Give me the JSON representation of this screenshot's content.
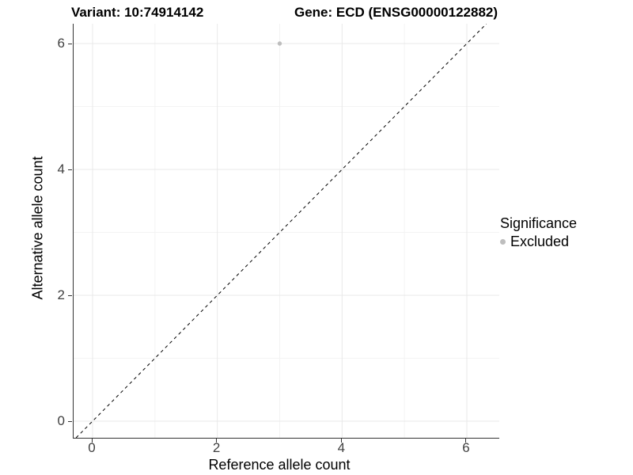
{
  "header": {
    "variant_title": "Variant: 10:74914142",
    "gene_title": "Gene: ECD (ENSG00000122882)"
  },
  "axes": {
    "x_label": "Reference allele count",
    "y_label": "Alternative allele count",
    "x_tick_labels": [
      "0",
      "2",
      "4",
      "6"
    ],
    "y_tick_labels": [
      "0",
      "2",
      "4",
      "6"
    ]
  },
  "legend": {
    "title": "Significance",
    "entries": [
      {
        "label": "Excluded",
        "color": "#bebebe"
      }
    ]
  },
  "chart_data": {
    "type": "scatter",
    "title": "Variant: 10:74914142 | Gene: ECD (ENSG00000122882)",
    "xlabel": "Reference allele count",
    "ylabel": "Alternative allele count",
    "xlim": [
      -0.3,
      6.5
    ],
    "ylim": [
      -0.26,
      6.31
    ],
    "x_ticks": [
      0,
      2,
      4,
      6
    ],
    "y_ticks": [
      0,
      2,
      4,
      6
    ],
    "minor_gridlines": [
      1,
      3,
      5
    ],
    "grid": "on",
    "legend_position": "right",
    "reference_line": {
      "type": "identity",
      "slope": 1,
      "intercept": 0,
      "style": "dashed",
      "color": "#000000"
    },
    "series": [
      {
        "name": "Excluded",
        "color": "#bebebe",
        "points": [
          {
            "x": 3,
            "y": 6
          }
        ]
      }
    ],
    "colors": {
      "grid_major": "#e8e8e8",
      "grid_minor": "#f3f3f3",
      "axis_line": "#333333",
      "tick": "#333333"
    }
  }
}
